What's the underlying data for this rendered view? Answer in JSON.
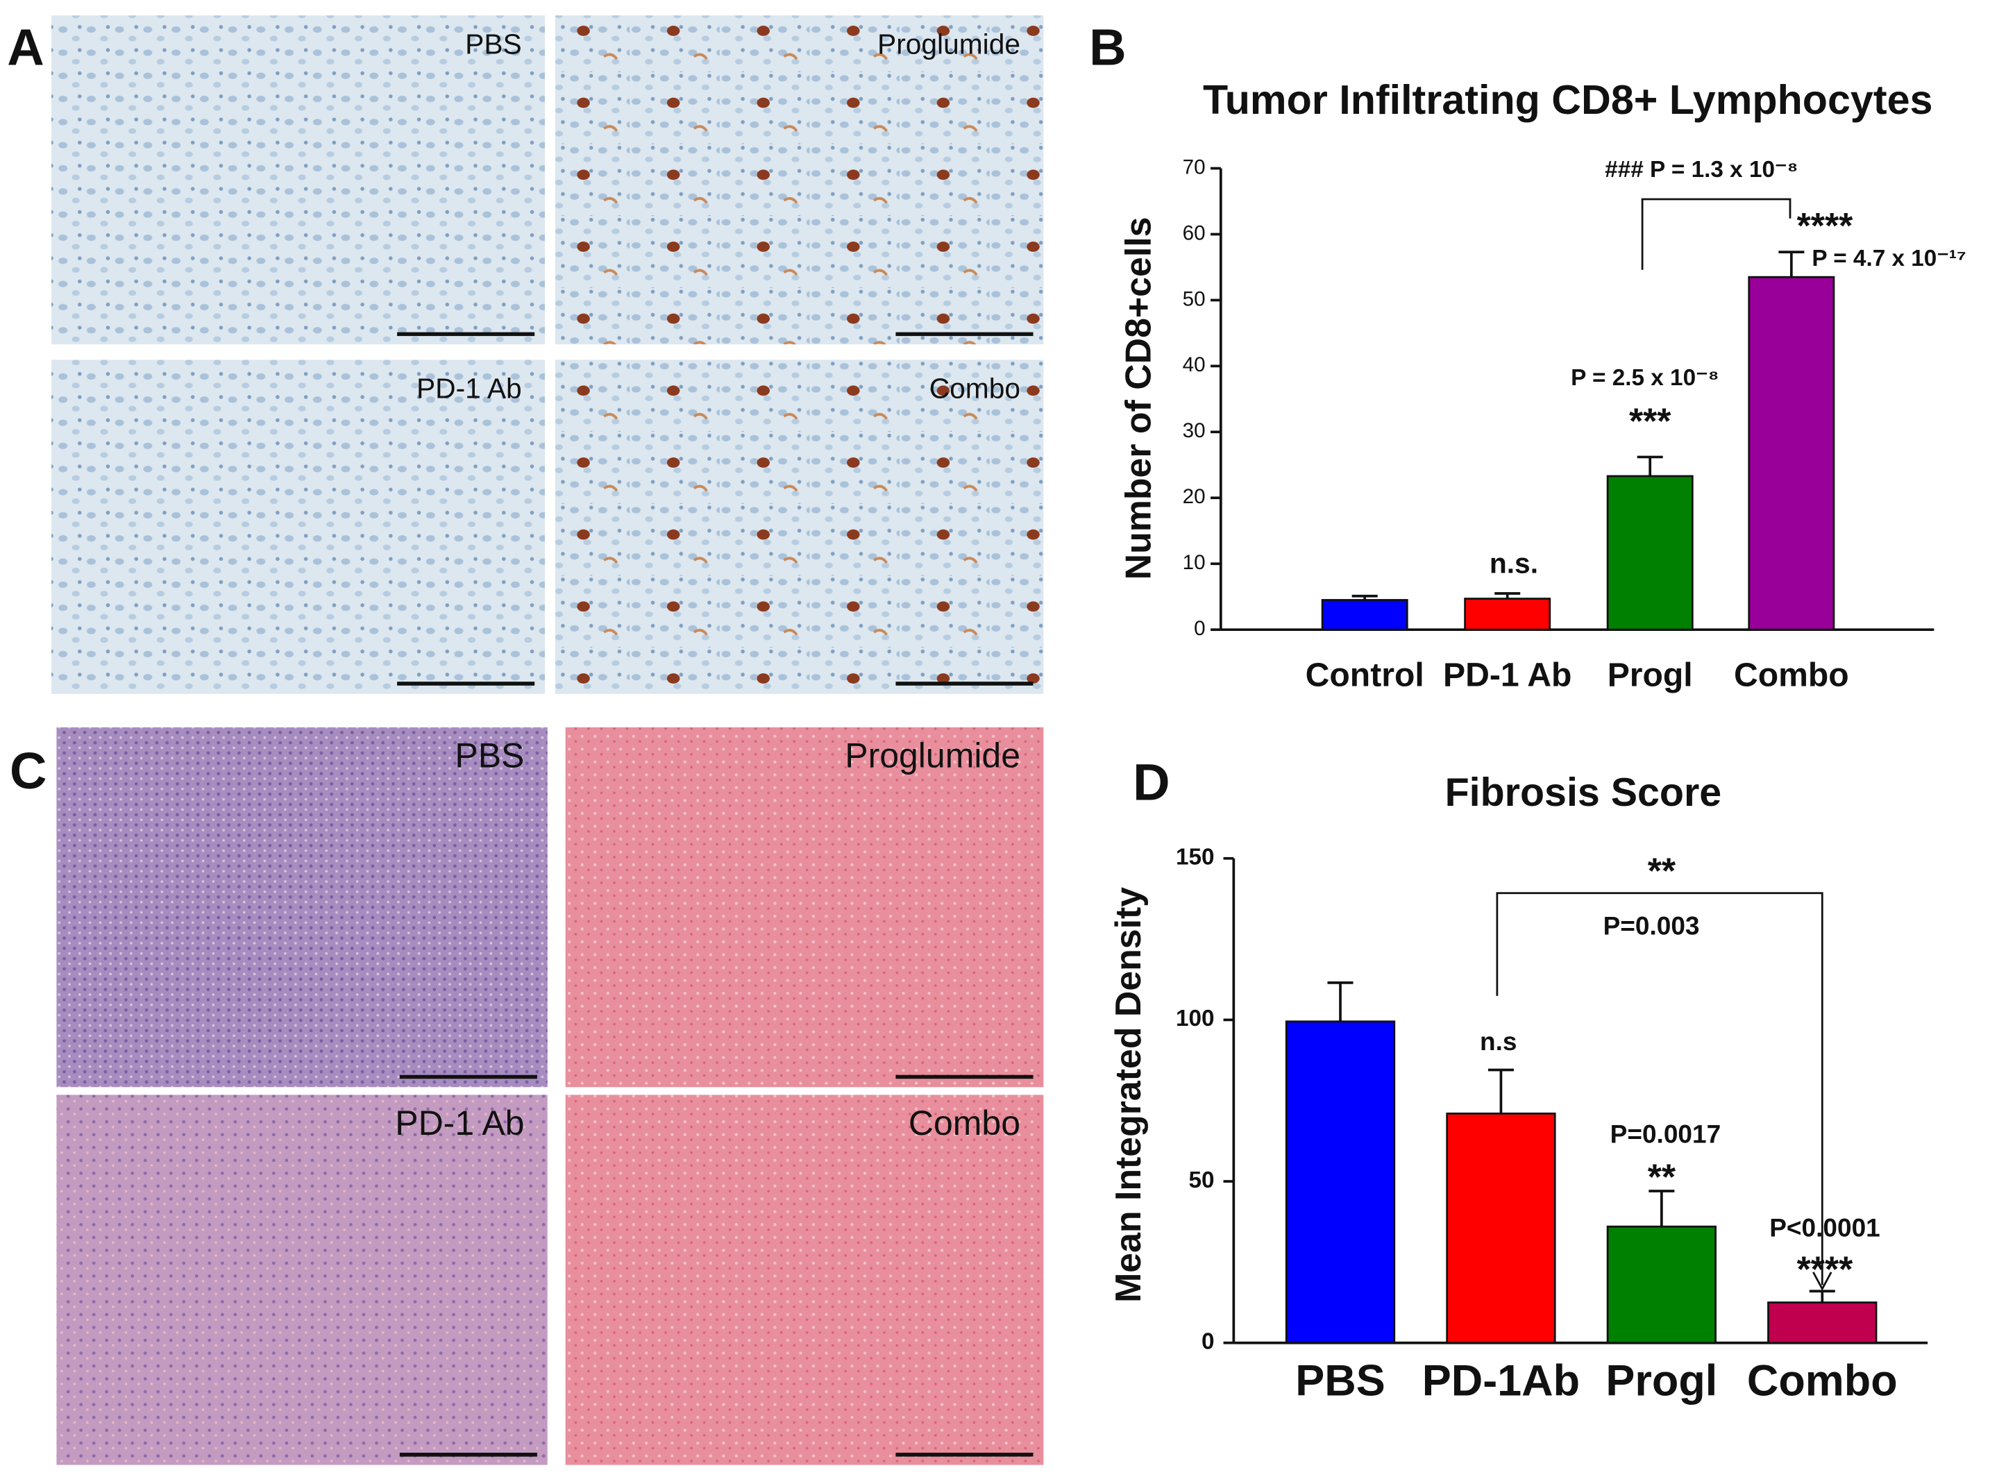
{
  "panels": [
    {
      "label": "A",
      "images": [
        "PBS",
        "Proglumide",
        "PD-1 Ab",
        "Combo"
      ]
    },
    {
      "label": "C",
      "images": [
        "PBS",
        "Proglumide",
        "PD-1 Ab",
        "Combo"
      ]
    }
  ],
  "chart_data": [
    {
      "type": "bar",
      "panel": "B",
      "title": "Tumor Infiltrating CD8+ Lymphocytes",
      "y_label": "Number of CD8+cells",
      "categories": [
        "Control",
        "PD-1 Ab",
        "Progl",
        "Combo"
      ],
      "values": [
        4.5,
        4.7,
        23.3,
        53.5
      ],
      "errors": [
        0.6,
        0.8,
        2.9,
        3.8
      ],
      "colors": [
        "#0000ff",
        "#ff0000",
        "#008000",
        "#990099"
      ],
      "ylim": [
        0,
        70
      ],
      "yticks": [
        0,
        10,
        20,
        30,
        40,
        50,
        60,
        70
      ],
      "annotations": [
        "n.s.",
        "***",
        "P = 2.5 x 10⁻⁸",
        "****",
        "P = 4.7 x 10⁻¹⁷",
        "### P = 1.3 x 10⁻⁸"
      ]
    },
    {
      "type": "bar",
      "panel": "D",
      "title": "Fibrosis Score",
      "y_label": "Mean Integrated Density",
      "categories": [
        "PBS",
        "PD-1Ab",
        "Progl",
        "Combo"
      ],
      "values": [
        99.5,
        71,
        36,
        12.5
      ],
      "errors": [
        12,
        13.5,
        11,
        3.5
      ],
      "colors": [
        "#0000ff",
        "#ff0000",
        "#008000",
        "#c0004f"
      ],
      "ylim": [
        0,
        150
      ],
      "yticks": [
        0,
        50,
        100,
        150
      ],
      "annotations": [
        "n.s",
        "P=0.0017",
        "**",
        "P<0.0001",
        "****",
        "**",
        "P=0.003"
      ]
    }
  ]
}
